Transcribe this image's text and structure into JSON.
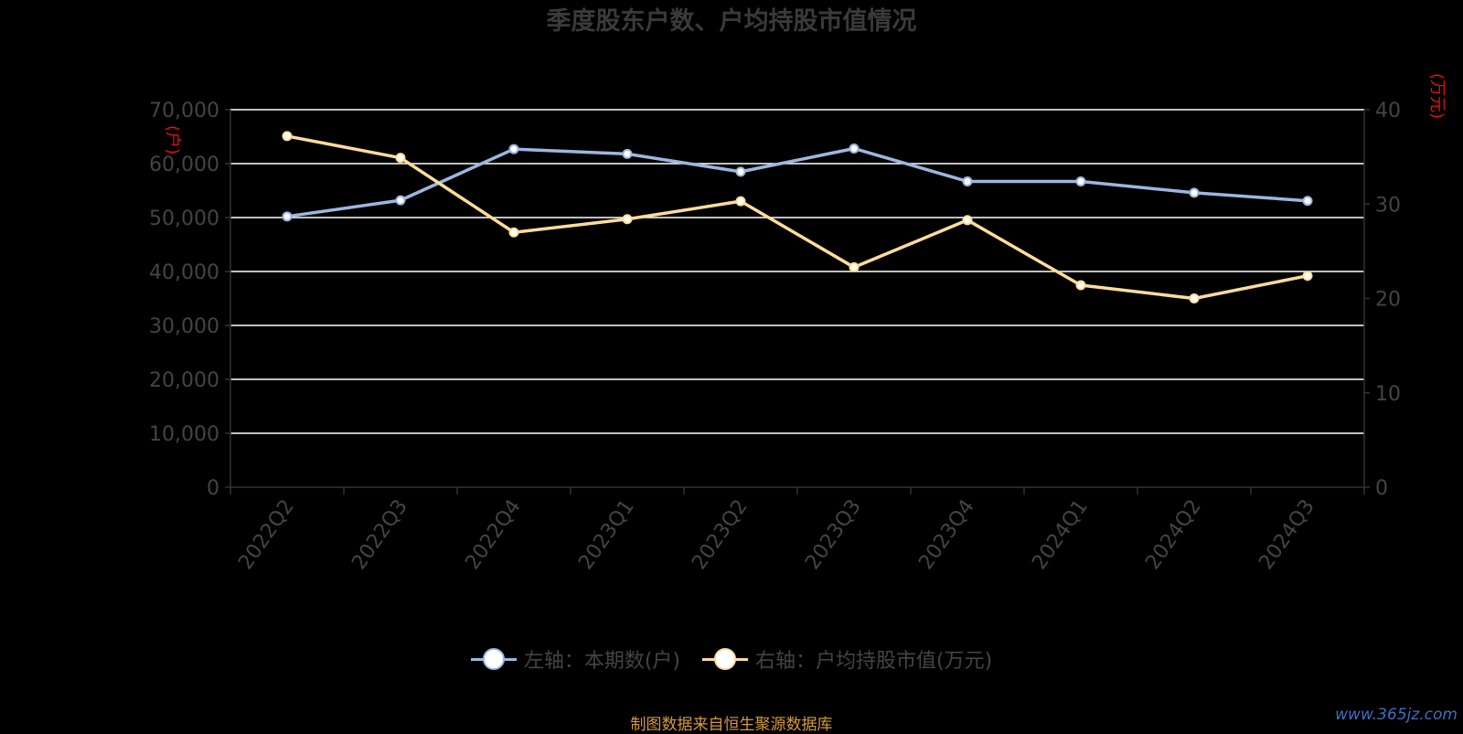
{
  "chart_data": {
    "type": "line",
    "title": "季度股东户数、户均持股市值情况",
    "categories": [
      "2022Q2",
      "2022Q3",
      "2022Q4",
      "2023Q1",
      "2023Q2",
      "2023Q3",
      "2023Q4",
      "2024Q1",
      "2024Q2",
      "2024Q3"
    ],
    "left_axis": {
      "unit_label": "(户)",
      "ylim": [
        0,
        70000
      ],
      "ticks": [
        "0",
        "10,000",
        "20,000",
        "30,000",
        "40,000",
        "50,000",
        "60,000",
        "70,000"
      ]
    },
    "right_axis": {
      "unit_label": "(万元)",
      "ylim": [
        0,
        40
      ],
      "ticks": [
        "0",
        "10",
        "20",
        "30",
        "40"
      ]
    },
    "series": [
      {
        "name": "左轴：本期数(户)",
        "axis": "left",
        "color": "#9db6e0",
        "values": [
          50200,
          53200,
          62700,
          61800,
          58500,
          62800,
          56700,
          56700,
          54600,
          53100
        ]
      },
      {
        "name": "右轴：户均持股市值(万元)",
        "axis": "right",
        "color": "#ffdc9a",
        "values": [
          37.2,
          34.9,
          27.0,
          28.4,
          30.3,
          23.3,
          28.3,
          21.4,
          20.0,
          22.4
        ]
      }
    ],
    "grid": true,
    "legend_position": "bottom"
  },
  "footer": {
    "source": "制图数据来自恒生聚源数据库",
    "watermark": "www.365jz.com"
  },
  "colors": {
    "background": "#000000",
    "gridline": "#ffffff",
    "axis_text": "#444444",
    "unit_label": "#e01010",
    "source_text": "#d69a3a"
  }
}
